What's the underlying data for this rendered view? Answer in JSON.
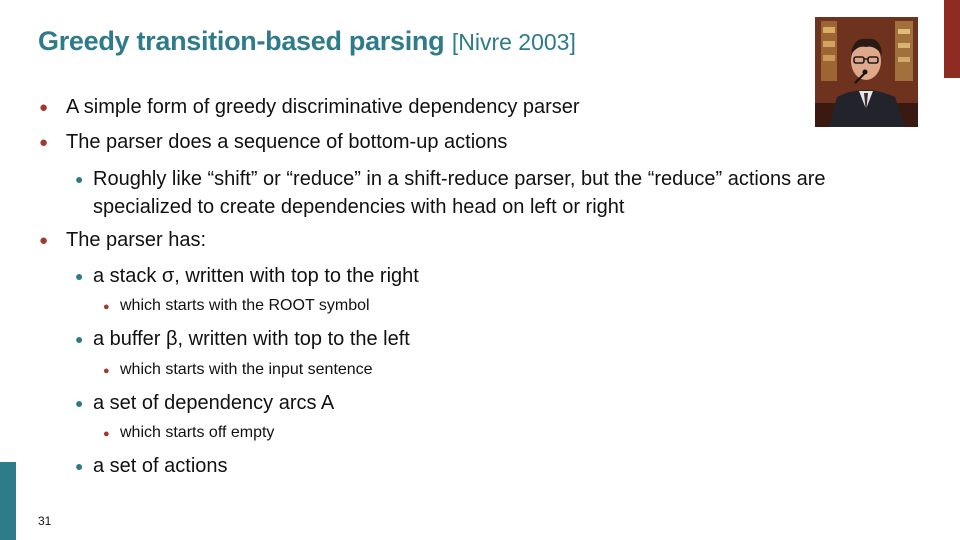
{
  "slide": {
    "title": "Greedy transition-based parsing",
    "title_ref": "[Nivre 2003]",
    "page_number": "31",
    "colors": {
      "title": "#2e7b8c",
      "accent_red": "#8e2b23",
      "accent_teal": "#2e7b8c"
    },
    "photo_icon": "person-photo",
    "bullets": [
      {
        "level": 1,
        "text": "A simple form of greedy discriminative dependency parser"
      },
      {
        "level": 1,
        "text": "The parser does a sequence of bottom-up actions"
      },
      {
        "level": 2,
        "text": "Roughly like “shift” or “reduce” in a shift-reduce parser, but the “reduce” actions are",
        "text2": "specialized to create dependencies with head on left or right"
      },
      {
        "level": 1,
        "text": "The parser has:"
      },
      {
        "level": 2,
        "text": "a stack σ, written with top to the right"
      },
      {
        "level": 3,
        "text": "which starts with the ROOT symbol"
      },
      {
        "level": 2,
        "text": "a buffer β, written with top to the left"
      },
      {
        "level": 3,
        "text": "which starts with the input sentence"
      },
      {
        "level": 2,
        "text": "a set of dependency arcs A"
      },
      {
        "level": 3,
        "text": "which starts off empty"
      },
      {
        "level": 2,
        "text": "a set of actions"
      }
    ]
  }
}
